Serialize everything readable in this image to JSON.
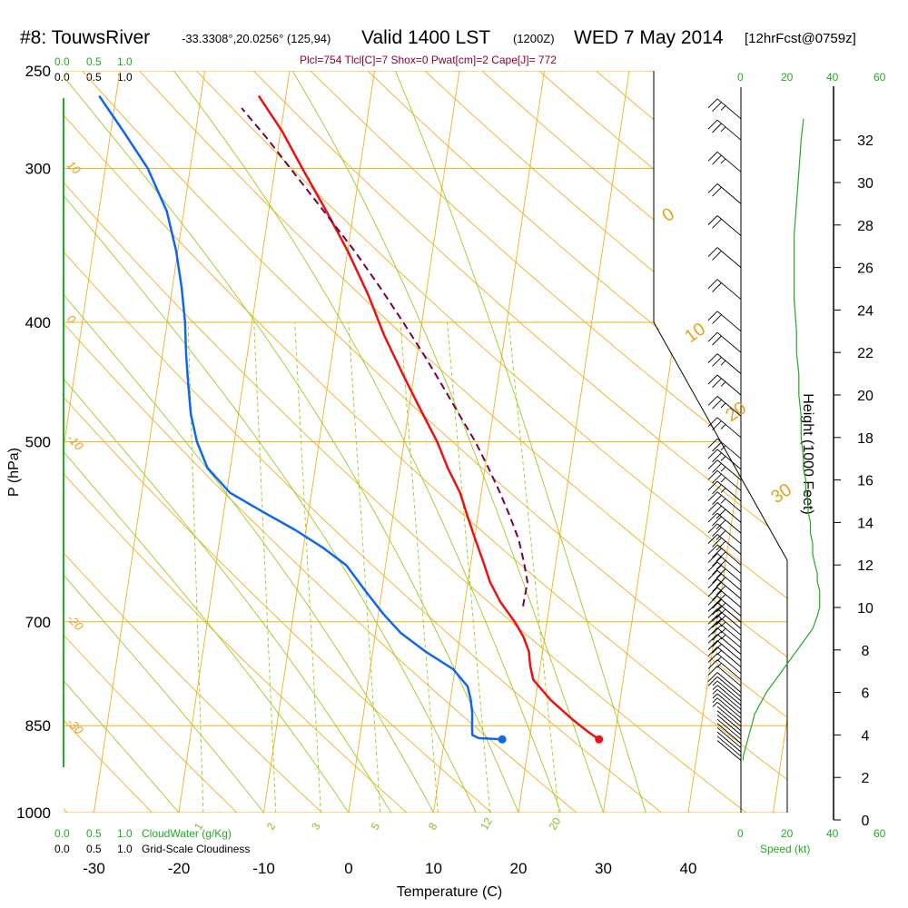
{
  "header": {
    "station": "#8: TouwsRiver",
    "coords": "-33.3308°,20.0256° (125,94)",
    "valid": "Valid 1400 LST",
    "zulu": "(1200Z)",
    "date": "WED 7 May 2014",
    "fcst": "[12hrFcst@0759z]"
  },
  "params_line": "Plcl=754 Tlcl[C]=7 Shox=0 Pwat[cm]=2 Cape[J]= 772",
  "colors": {
    "temp": "#ee1111",
    "dewpoint": "#1166ee",
    "parcel": "#770044",
    "isotherm": "#f0b020",
    "dry_adiabat": "#f0b020",
    "moist_adiabat": "#99cc22",
    "mixing_ratio": "#99cc22",
    "cloud": "#22aa22"
  },
  "top_scales": {
    "cloudwater": [
      "0.0",
      "0.5",
      "1.0"
    ],
    "cloudiness": [
      "0.0",
      "0.5",
      "1.0"
    ],
    "speed": [
      "0",
      "20",
      "40"
    ],
    "speed_extra": "60"
  },
  "bottom_scales": {
    "cloudwater": [
      "0.0",
      "0.5",
      "1.0"
    ],
    "cloudwater_label": "CloudWater (g/Kg)",
    "cloudiness": [
      "0.0",
      "0.5",
      "1.0"
    ],
    "cloudiness_label": "Grid-Scale Cloudiness",
    "speed": [
      "0",
      "20",
      "40"
    ],
    "speed_extra": "60",
    "speed_label": "Speed (kt)"
  },
  "chart_data": {
    "type": "line",
    "title": "#8: TouwsRiver Valid 1400 LST (1200Z) WED 7 May 2014",
    "xlabel": "Temperature (C)",
    "ylabel": "P (hPa)",
    "y2label": "Height (1000 Feet)",
    "x_ticks": [
      -30,
      -20,
      -10,
      0,
      10,
      20,
      30,
      40
    ],
    "p_ticks": [
      250,
      300,
      400,
      500,
      700,
      850,
      1000
    ],
    "height_ticks": [
      0,
      2,
      4,
      6,
      8,
      10,
      12,
      14,
      16,
      18,
      20,
      22,
      24,
      26,
      28,
      30,
      32
    ],
    "isotherm_labels": [
      "10",
      "0",
      "-10",
      "-20",
      "-30"
    ],
    "right_iso_labels": [
      "0",
      "10",
      "20",
      "30"
    ],
    "mixing_ratio_labels": [
      "1",
      "2",
      "3",
      "5",
      "8",
      "12",
      "20"
    ],
    "series": [
      {
        "name": "Temperature",
        "points": [
          [
            28.2,
            872
          ],
          [
            26.8,
            860
          ],
          [
            24.7,
            840
          ],
          [
            21.8,
            810
          ],
          [
            19.4,
            780
          ],
          [
            18.8,
            760
          ],
          [
            18.4,
            740
          ],
          [
            17.5,
            720
          ],
          [
            16.2,
            700
          ],
          [
            14.2,
            675
          ],
          [
            12.6,
            650
          ],
          [
            11.4,
            625
          ],
          [
            10.1,
            600
          ],
          [
            8.8,
            575
          ],
          [
            7.5,
            550
          ],
          [
            5.6,
            525
          ],
          [
            3.9,
            500
          ],
          [
            1.3,
            470
          ],
          [
            -1.4,
            440
          ],
          [
            -4.2,
            410
          ],
          [
            -6.8,
            380
          ],
          [
            -10.0,
            350
          ],
          [
            -13.2,
            325
          ],
          [
            -16.8,
            300
          ],
          [
            -19.8,
            280
          ],
          [
            -23.2,
            262
          ]
        ]
      },
      {
        "name": "Dewpoint",
        "points": [
          [
            16.8,
            872
          ],
          [
            14.0,
            870
          ],
          [
            13.2,
            865
          ],
          [
            13.0,
            850
          ],
          [
            12.8,
            830
          ],
          [
            12.4,
            810
          ],
          [
            11.8,
            790
          ],
          [
            9.8,
            765
          ],
          [
            6.2,
            740
          ],
          [
            3.0,
            715
          ],
          [
            0.6,
            690
          ],
          [
            -2.0,
            660
          ],
          [
            -4.6,
            630
          ],
          [
            -7.6,
            610
          ],
          [
            -11.2,
            590
          ],
          [
            -15.4,
            570
          ],
          [
            -19.6,
            550
          ],
          [
            -22.7,
            525
          ],
          [
            -24.4,
            500
          ],
          [
            -25.6,
            475
          ],
          [
            -26.4,
            450
          ],
          [
            -27.2,
            425
          ],
          [
            -27.9,
            400
          ],
          [
            -28.9,
            375
          ],
          [
            -30.2,
            350
          ],
          [
            -32.0,
            325
          ],
          [
            -35.0,
            300
          ],
          [
            -38.5,
            280
          ],
          [
            -42.0,
            262
          ]
        ]
      },
      {
        "name": "Parcel",
        "points": [
          [
            16.9,
            680
          ],
          [
            17.0,
            650
          ],
          [
            16.2,
            625
          ],
          [
            15.2,
            600
          ],
          [
            13.8,
            575
          ],
          [
            12.2,
            550
          ],
          [
            10.4,
            525
          ],
          [
            8.4,
            500
          ],
          [
            6.0,
            475
          ],
          [
            3.5,
            450
          ],
          [
            0.8,
            425
          ],
          [
            -2.2,
            400
          ],
          [
            -5.5,
            375
          ],
          [
            -9.2,
            350
          ],
          [
            -13.5,
            325
          ],
          [
            -18.2,
            300
          ],
          [
            -21.6,
            283
          ],
          [
            -25.0,
            268
          ]
        ]
      }
    ],
    "surface_points": [
      {
        "name": "Surface Temperature",
        "t": 28.2,
        "p": 872
      },
      {
        "name": "Surface Dewpoint",
        "t": 16.8,
        "p": 872
      }
    ],
    "wind_profile": {
      "speed_scale_kt": [
        0,
        20,
        40
      ],
      "heights_kft": [
        2.8,
        3.0,
        3.2,
        3.4,
        3.6,
        3.8,
        4.0,
        4.2,
        4.4,
        4.6,
        4.8,
        5.0,
        5.2,
        5.4,
        5.6,
        5.8,
        6.0,
        6.3,
        6.6,
        6.9,
        7.2,
        7.5,
        7.8,
        8.1,
        8.4,
        8.7,
        9.0,
        9.3,
        9.6,
        10.0,
        10.4,
        10.8,
        11.2,
        11.6,
        12.0,
        12.5,
        13.0,
        13.5,
        14.0,
        14.5,
        15.0,
        15.5,
        16.0,
        16.5,
        17.0,
        18.0,
        19.0,
        20.0,
        21.0,
        22.0,
        23.0,
        24.5,
        26.0,
        27.5,
        29.0,
        30.5,
        32.0,
        33.0
      ],
      "speeds_kt": [
        1,
        1,
        1.5,
        2,
        2.5,
        3,
        3.5,
        4,
        4.5,
        5,
        5.5,
        6,
        7,
        8,
        9,
        10,
        11,
        13,
        15,
        17,
        19,
        21,
        23,
        25,
        27,
        29,
        31,
        32,
        33,
        34,
        34,
        34,
        33,
        33,
        32,
        31,
        31,
        30,
        30,
        29,
        29,
        28,
        28,
        27,
        27,
        26,
        26,
        25,
        25,
        24,
        24,
        23,
        23,
        23,
        24,
        25,
        26,
        27
      ]
    }
  }
}
